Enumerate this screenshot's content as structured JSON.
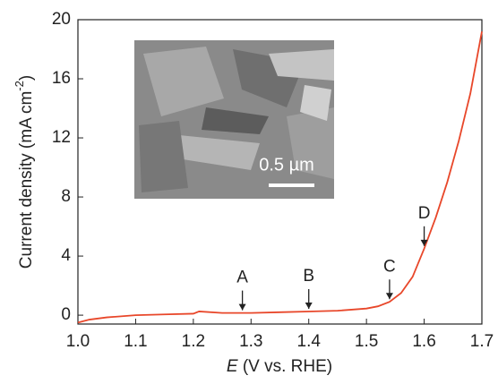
{
  "chart_data": {
    "type": "line",
    "ylabel": [
      "Current density (mA cm",
      "-2",
      ")"
    ],
    "xlabel": [
      "E",
      " (V vs. RHE)"
    ],
    "x": [
      1.0,
      1.02,
      1.05,
      1.1,
      1.15,
      1.2,
      1.21,
      1.25,
      1.3,
      1.35,
      1.4,
      1.45,
      1.5,
      1.52,
      1.54,
      1.56,
      1.58,
      1.6,
      1.62,
      1.64,
      1.66,
      1.68,
      1.7
    ],
    "series": [
      {
        "color": "#e8472a",
        "values": [
          -0.5,
          -0.3,
          -0.15,
          0.0,
          0.05,
          0.1,
          0.25,
          0.15,
          0.15,
          0.2,
          0.25,
          0.3,
          0.45,
          0.6,
          0.9,
          1.5,
          2.6,
          4.5,
          6.6,
          9.0,
          11.8,
          15.0,
          19.2
        ]
      }
    ],
    "xlim": [
      1.0,
      1.7
    ],
    "ylim": [
      -0.6,
      20
    ],
    "xticks": [
      {
        "value": 1.0,
        "label": "1.0"
      },
      1.1,
      1.2,
      1.3,
      1.4,
      1.5,
      1.6,
      1.7
    ],
    "yticks": [
      0,
      4,
      8,
      12,
      16,
      20
    ],
    "annotations": [
      {
        "text": "A",
        "x": 1.285,
        "y": 0.15
      },
      {
        "text": "B",
        "x": 1.4,
        "y": 0.25
      },
      {
        "text": "C",
        "x": 1.54,
        "y": 0.9
      },
      {
        "text": "D",
        "x": 1.6,
        "y": 4.5
      }
    ],
    "inset_scale_label": "0.5 µm"
  }
}
